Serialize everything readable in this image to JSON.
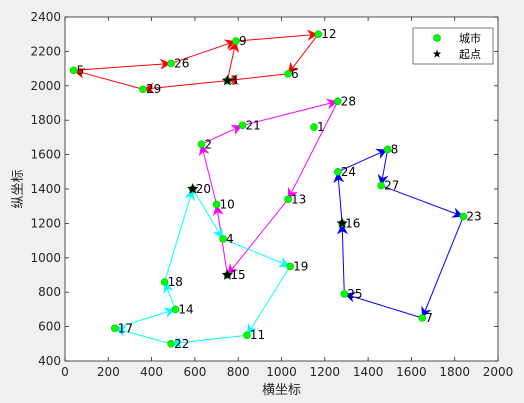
{
  "chart_data": {
    "type": "scatter",
    "xlabel": "横坐标",
    "ylabel": "纵坐标",
    "xlim": [
      0,
      2000
    ],
    "ylim": [
      400,
      2400
    ],
    "xticks": [
      0,
      200,
      400,
      600,
      800,
      1000,
      1200,
      1400,
      1600,
      1800,
      2000
    ],
    "yticks": [
      400,
      600,
      800,
      1000,
      1200,
      1400,
      1600,
      1800,
      2000,
      2200,
      2400
    ],
    "grid": false,
    "legend_position": "top-right",
    "legend": [
      {
        "label": "城市",
        "marker": "circle",
        "color": "#00ff00"
      },
      {
        "label": "起点",
        "marker": "star",
        "color": "#000000"
      }
    ],
    "cities": [
      {
        "id": "1",
        "x": 1150,
        "y": 1760
      },
      {
        "id": "2",
        "x": 630,
        "y": 1660
      },
      {
        "id": "3",
        "x": 750,
        "y": 2030
      },
      {
        "id": "4",
        "x": 730,
        "y": 1110
      },
      {
        "id": "5",
        "x": 40,
        "y": 2090
      },
      {
        "id": "6",
        "x": 1030,
        "y": 2070
      },
      {
        "id": "7",
        "x": 1650,
        "y": 650
      },
      {
        "id": "8",
        "x": 1490,
        "y": 1630
      },
      {
        "id": "9",
        "x": 790,
        "y": 2260
      },
      {
        "id": "10",
        "x": 700,
        "y": 1310
      },
      {
        "id": "11",
        "x": 840,
        "y": 550
      },
      {
        "id": "12",
        "x": 1170,
        "y": 2300
      },
      {
        "id": "13",
        "x": 1030,
        "y": 1340
      },
      {
        "id": "14",
        "x": 510,
        "y": 700
      },
      {
        "id": "15",
        "x": 750,
        "y": 900
      },
      {
        "id": "16",
        "x": 1280,
        "y": 1200
      },
      {
        "id": "17",
        "x": 230,
        "y": 590
      },
      {
        "id": "18",
        "x": 460,
        "y": 860
      },
      {
        "id": "19",
        "x": 1040,
        "y": 950
      },
      {
        "id": "20",
        "x": 590,
        "y": 1400
      },
      {
        "id": "21",
        "x": 820,
        "y": 1770
      },
      {
        "id": "22",
        "x": 490,
        "y": 500
      },
      {
        "id": "23",
        "x": 1840,
        "y": 1240
      },
      {
        "id": "24",
        "x": 1260,
        "y": 1500
      },
      {
        "id": "25",
        "x": 1290,
        "y": 790
      },
      {
        "id": "26",
        "x": 490,
        "y": 2130
      },
      {
        "id": "27",
        "x": 1460,
        "y": 1420
      },
      {
        "id": "28",
        "x": 1260,
        "y": 1910
      },
      {
        "id": "29",
        "x": 360,
        "y": 1980
      }
    ],
    "start_points": [
      "3",
      "20",
      "15",
      "16"
    ],
    "routes": [
      {
        "color": "#ff0000",
        "path": [
          "3",
          "9",
          "12",
          "6",
          "3",
          "29",
          "5",
          "26",
          "9"
        ],
        "loop": false
      },
      {
        "color": "#ff00ff",
        "path": [
          "15",
          "10",
          "2",
          "21",
          "28",
          "13",
          "15"
        ],
        "loop": false
      },
      {
        "color": "#00ffff",
        "path": [
          "20",
          "4",
          "19",
          "11",
          "22",
          "17",
          "14",
          "18",
          "20"
        ],
        "loop": false
      },
      {
        "color": "#0000ff",
        "path": [
          "16",
          "24",
          "8",
          "27",
          "23",
          "7",
          "25",
          "16"
        ],
        "loop": false
      }
    ]
  }
}
